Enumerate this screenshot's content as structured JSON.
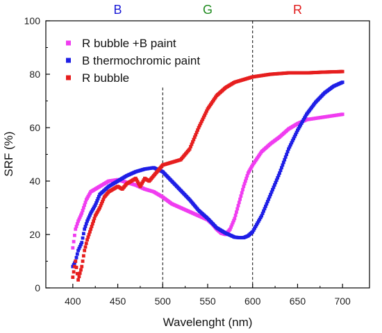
{
  "chart_data": {
    "type": "scatter",
    "xlabel": "Wavelenght (nm)",
    "ylabel": "SRF (%)",
    "xlim": [
      370,
      730
    ],
    "ylim": [
      0,
      100
    ],
    "xticks": [
      400,
      450,
      500,
      550,
      600,
      650,
      700
    ],
    "yticks": [
      0,
      20,
      40,
      60,
      80,
      100
    ],
    "grid": false,
    "legend_position": "top-left",
    "vlines": [
      500,
      600
    ],
    "band_labels": [
      {
        "text": "B",
        "x": 450,
        "color": "#1a1ad6"
      },
      {
        "text": "G",
        "x": 550,
        "color": "#1e8a1e"
      },
      {
        "text": "R",
        "x": 650,
        "color": "#e01818"
      }
    ],
    "series": [
      {
        "name": "R bubble +B paint",
        "color": "#f03cf0",
        "x": [
          400,
          403,
          406,
          410,
          415,
          420,
          425,
          430,
          440,
          450,
          460,
          470,
          480,
          490,
          500,
          510,
          520,
          530,
          540,
          550,
          555,
          560,
          565,
          570,
          575,
          580,
          585,
          590,
          595,
          600,
          610,
          620,
          630,
          640,
          650,
          660,
          670,
          680,
          690,
          700
        ],
        "y": [
          15,
          22,
          25,
          28,
          33,
          36,
          37,
          38,
          40,
          40.5,
          39.5,
          38.5,
          37,
          36,
          34,
          31.5,
          30,
          28.5,
          27,
          25.5,
          24,
          22,
          20.5,
          20,
          22,
          26,
          32,
          38,
          43,
          46,
          51,
          54,
          56.5,
          59.5,
          61.5,
          63,
          63.5,
          64,
          64.5,
          65
        ]
      },
      {
        "name": "B thermochromic paint",
        "color": "#1e1ee6",
        "x": [
          400,
          403,
          406,
          410,
          413,
          416,
          420,
          425,
          430,
          440,
          450,
          460,
          470,
          480,
          490,
          500,
          510,
          520,
          530,
          540,
          550,
          560,
          570,
          580,
          585,
          590,
          595,
          600,
          610,
          620,
          630,
          640,
          650,
          660,
          670,
          680,
          690,
          700
        ],
        "y": [
          8,
          10,
          14,
          17,
          22,
          25,
          28,
          31,
          35,
          38,
          40,
          42,
          43.5,
          44.5,
          45,
          43.5,
          40,
          36.5,
          33,
          29,
          26,
          22.5,
          20.5,
          19,
          18.8,
          18.8,
          19.5,
          21,
          27,
          35,
          43,
          52,
          59,
          65,
          69.5,
          73,
          75.5,
          77
        ]
      },
      {
        "name": "R bubble",
        "color": "#e61e1e",
        "x": [
          400,
          403,
          406,
          410,
          413,
          416,
          420,
          425,
          430,
          435,
          440,
          445,
          450,
          455,
          460,
          465,
          470,
          475,
          480,
          485,
          490,
          495,
          500,
          510,
          520,
          530,
          540,
          550,
          560,
          570,
          580,
          590,
          600,
          620,
          640,
          660,
          680,
          700
        ],
        "y": [
          4,
          10,
          3,
          8,
          14,
          18,
          22,
          27,
          30,
          34,
          36,
          37,
          38,
          37,
          39,
          40,
          41,
          38,
          41,
          40,
          42,
          44,
          46,
          47,
          48,
          52,
          60,
          67,
          72,
          75,
          77,
          78,
          79,
          80,
          80.5,
          80.5,
          80.8,
          81
        ]
      }
    ]
  }
}
